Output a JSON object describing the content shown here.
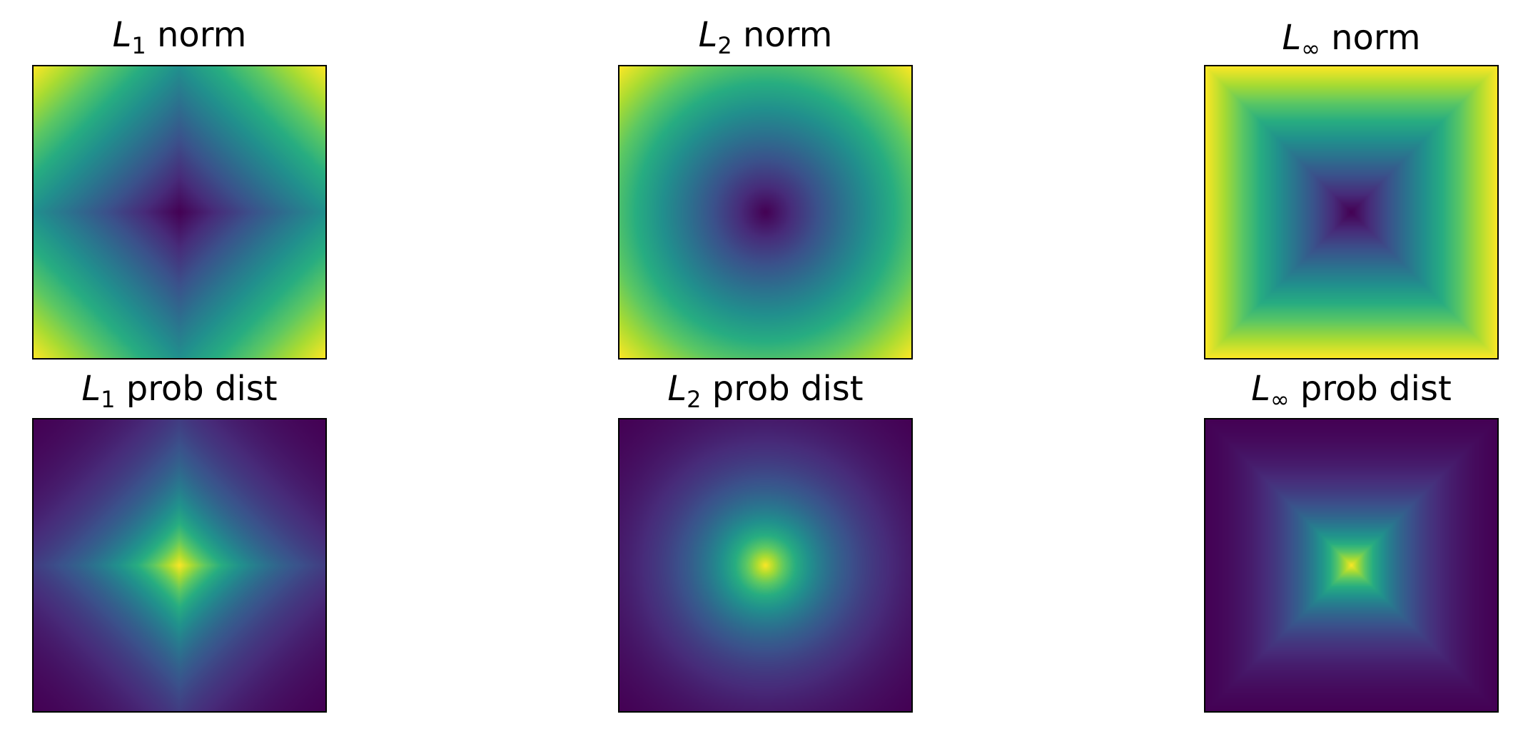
{
  "chart_data": [
    {
      "type": "heatmap",
      "title": {
        "symbol": "L",
        "subscript": "1",
        "suffix": "norm"
      },
      "norm": "L1",
      "quantity": "norm",
      "colormap": "viridis",
      "grid": false,
      "ticks": false
    },
    {
      "type": "heatmap",
      "title": {
        "symbol": "L",
        "subscript": "2",
        "suffix": "norm"
      },
      "norm": "L2",
      "quantity": "norm",
      "colormap": "viridis",
      "grid": false,
      "ticks": false
    },
    {
      "type": "heatmap",
      "title": {
        "symbol": "L",
        "subscript": "∞",
        "suffix": "norm"
      },
      "norm": "Linf",
      "quantity": "norm",
      "colormap": "viridis",
      "grid": false,
      "ticks": false
    },
    {
      "type": "heatmap",
      "title": {
        "symbol": "L",
        "subscript": "1",
        "suffix": "prob dist"
      },
      "norm": "L1",
      "quantity": "prob dist",
      "colormap": "viridis",
      "grid": false,
      "ticks": false
    },
    {
      "type": "heatmap",
      "title": {
        "symbol": "L",
        "subscript": "2",
        "suffix": "prob dist"
      },
      "norm": "L2",
      "quantity": "prob dist",
      "colormap": "viridis",
      "grid": false,
      "ticks": false
    },
    {
      "type": "heatmap",
      "title": {
        "symbol": "L",
        "subscript": "∞",
        "suffix": "prob dist"
      },
      "norm": "Linf",
      "quantity": "prob dist",
      "colormap": "viridis",
      "grid": false,
      "ticks": false
    }
  ]
}
